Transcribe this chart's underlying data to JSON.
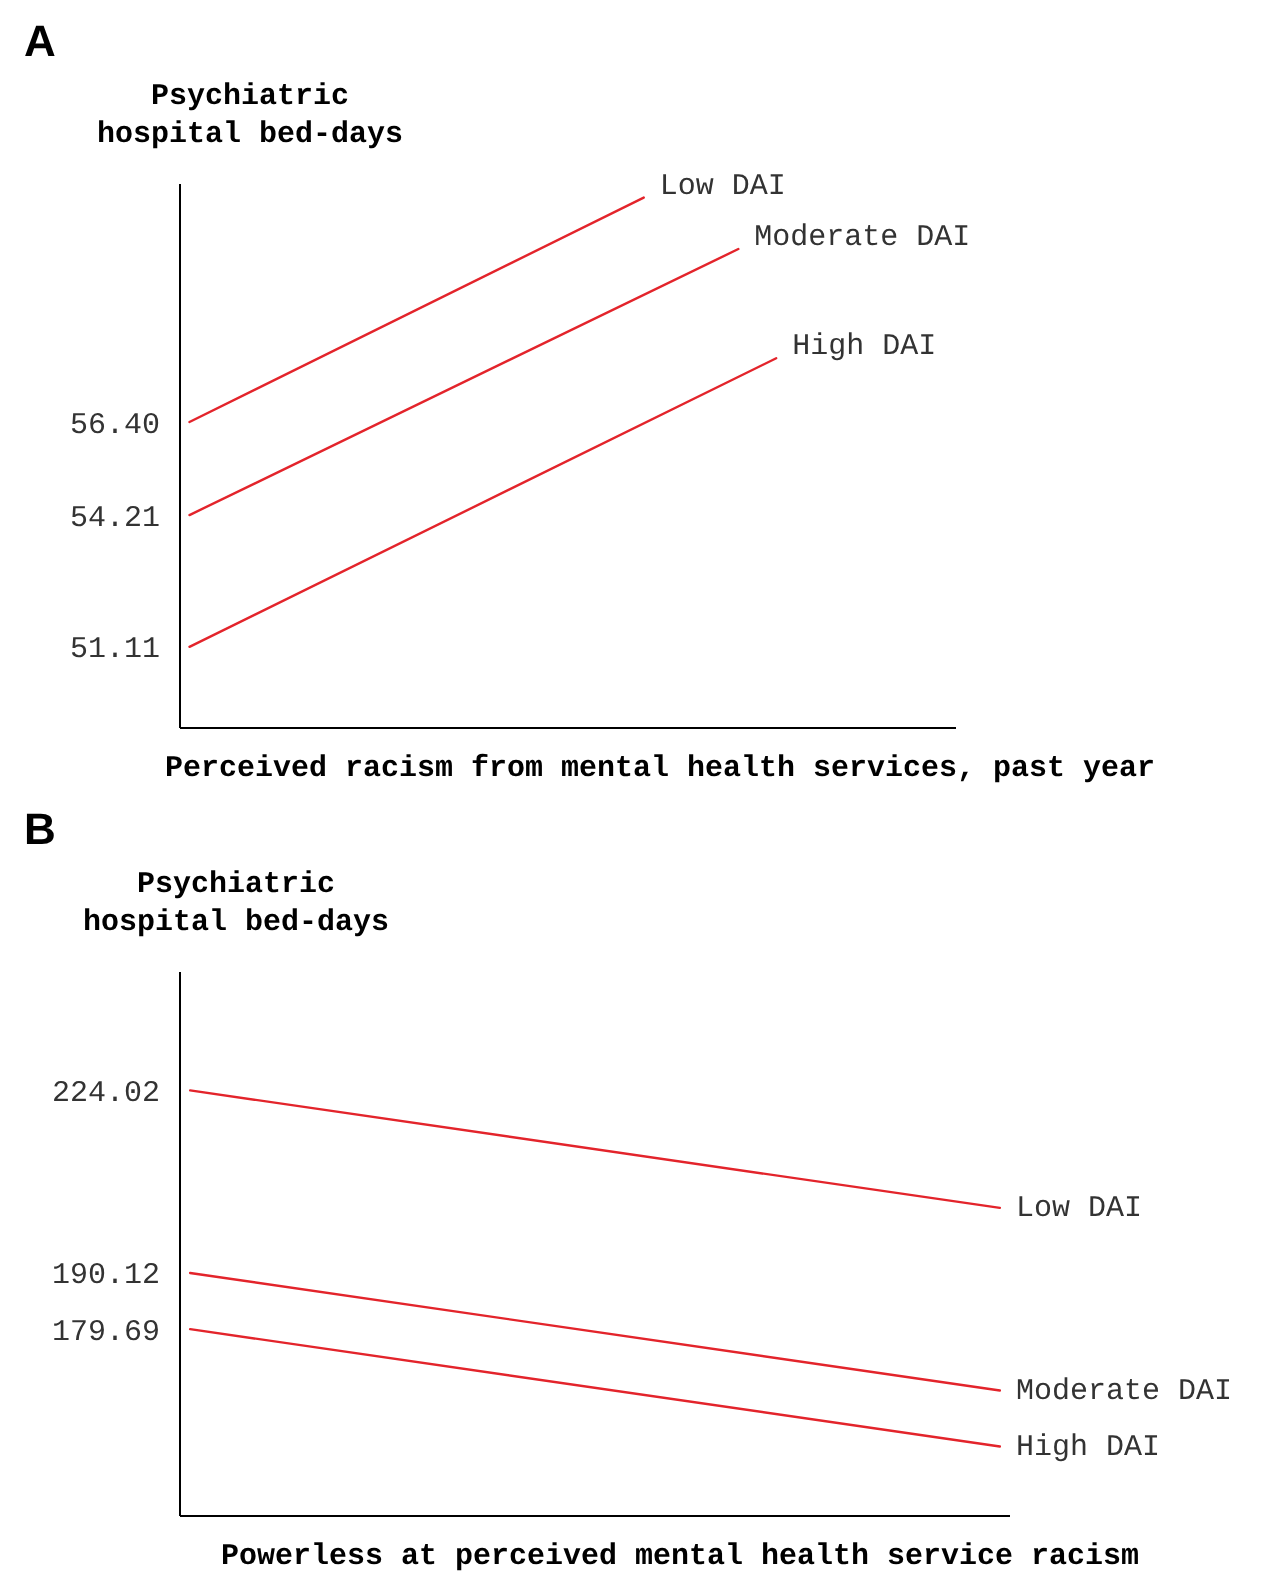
{
  "chart_data": [
    {
      "type": "line",
      "title": "A",
      "ylabel": "Psychiatric hospital bed-days",
      "xlabel": "Perceived racism from mental health services, past year",
      "categories": [
        null,
        null,
        null,
        null,
        null,
        null,
        null,
        null,
        null,
        null,
        null,
        null,
        null,
        null,
        null,
        null,
        null,
        null,
        null,
        null,
        null,
        null,
        null,
        null,
        null,
        null,
        null,
        null,
        null,
        null,
        null,
        null,
        null,
        null,
        null,
        null,
        null,
        null,
        null,
        null,
        null
      ],
      "ylim": [
        49.2,
        62
      ],
      "yticks": [
        {
          "value": 56.4,
          "label": "56.40"
        },
        54.21,
        51.11
      ],
      "tick_labels": "y",
      "marker": "none",
      "line_style": "solid",
      "series": [
        {
          "name": "Low DAI",
          "color": "#e3242b",
          "values": [
            56.4,
            null,
            null,
            null,
            null,
            null,
            null,
            null,
            null,
            null,
            null,
            null,
            null,
            null,
            null,
            null,
            null,
            null,
            null,
            null,
            null,
            null,
            null,
            null,
            61.68,
            null,
            null,
            null,
            null,
            null,
            null,
            null,
            null,
            null,
            null,
            null,
            null,
            null,
            null,
            null,
            null
          ]
        },
        {
          "name": "Moderate DAI",
          "color": "#e3242b",
          "values": [
            54.21,
            null,
            null,
            null,
            null,
            null,
            null,
            null,
            null,
            null,
            null,
            null,
            null,
            null,
            null,
            null,
            null,
            null,
            null,
            null,
            null,
            null,
            null,
            null,
            null,
            null,
            null,
            null,
            null,
            60.47,
            null,
            null,
            null,
            null,
            null,
            null,
            null,
            null,
            null,
            null,
            null
          ]
        },
        {
          "name": "High DAI",
          "color": "#e3242b",
          "values": [
            51.11,
            null,
            null,
            null,
            null,
            null,
            null,
            null,
            null,
            null,
            null,
            null,
            null,
            null,
            null,
            null,
            null,
            null,
            null,
            null,
            null,
            null,
            null,
            null,
            null,
            null,
            null,
            null,
            null,
            null,
            null,
            57.9,
            null,
            null,
            null,
            null,
            null,
            null,
            null,
            null,
            null
          ]
        }
      ]
    },
    {
      "type": "line",
      "title": "B",
      "ylabel": "Psychiatric hospital bed-days",
      "xlabel": "Powerless at perceived mental health service racism",
      "categories": [
        null,
        null,
        null,
        null,
        null,
        null,
        null,
        null,
        null,
        null,
        null,
        null,
        null,
        null,
        null,
        null,
        null,
        null,
        null,
        null,
        null,
        null,
        null,
        null,
        null,
        null,
        null,
        null,
        null,
        null,
        null,
        null,
        null,
        null,
        null,
        null,
        null,
        null,
        null,
        null,
        null
      ],
      "ylim": [
        145,
        246
      ],
      "yticks": [
        224.02,
        190.12,
        179.69
      ],
      "tick_labels": "y",
      "marker": "none",
      "line_style": "solid",
      "series": [
        {
          "name": "Low DAI",
          "color": "#e3242b",
          "values": [
            224.02,
            null,
            null,
            null,
            null,
            null,
            null,
            null,
            null,
            null,
            null,
            null,
            null,
            null,
            null,
            null,
            null,
            null,
            null,
            null,
            null,
            null,
            null,
            null,
            null,
            null,
            null,
            null,
            null,
            null,
            null,
            null,
            null,
            null,
            null,
            null,
            null,
            null,
            null,
            null,
            202.2
          ]
        },
        {
          "name": "Moderate DAI",
          "color": "#e3242b",
          "values": [
            190.12,
            null,
            null,
            null,
            null,
            null,
            null,
            null,
            null,
            null,
            null,
            null,
            null,
            null,
            null,
            null,
            null,
            null,
            null,
            null,
            null,
            null,
            null,
            null,
            null,
            null,
            null,
            null,
            null,
            null,
            null,
            null,
            null,
            null,
            null,
            null,
            null,
            null,
            null,
            null,
            168.3
          ]
        },
        {
          "name": "High DAI",
          "color": "#e3242b",
          "values": [
            179.69,
            null,
            null,
            null,
            null,
            null,
            null,
            null,
            null,
            null,
            null,
            null,
            null,
            null,
            null,
            null,
            null,
            null,
            null,
            null,
            null,
            null,
            null,
            null,
            null,
            null,
            null,
            null,
            null,
            null,
            null,
            null,
            null,
            null,
            null,
            null,
            null,
            null,
            null,
            null,
            157.9
          ]
        }
      ]
    }
  ]
}
